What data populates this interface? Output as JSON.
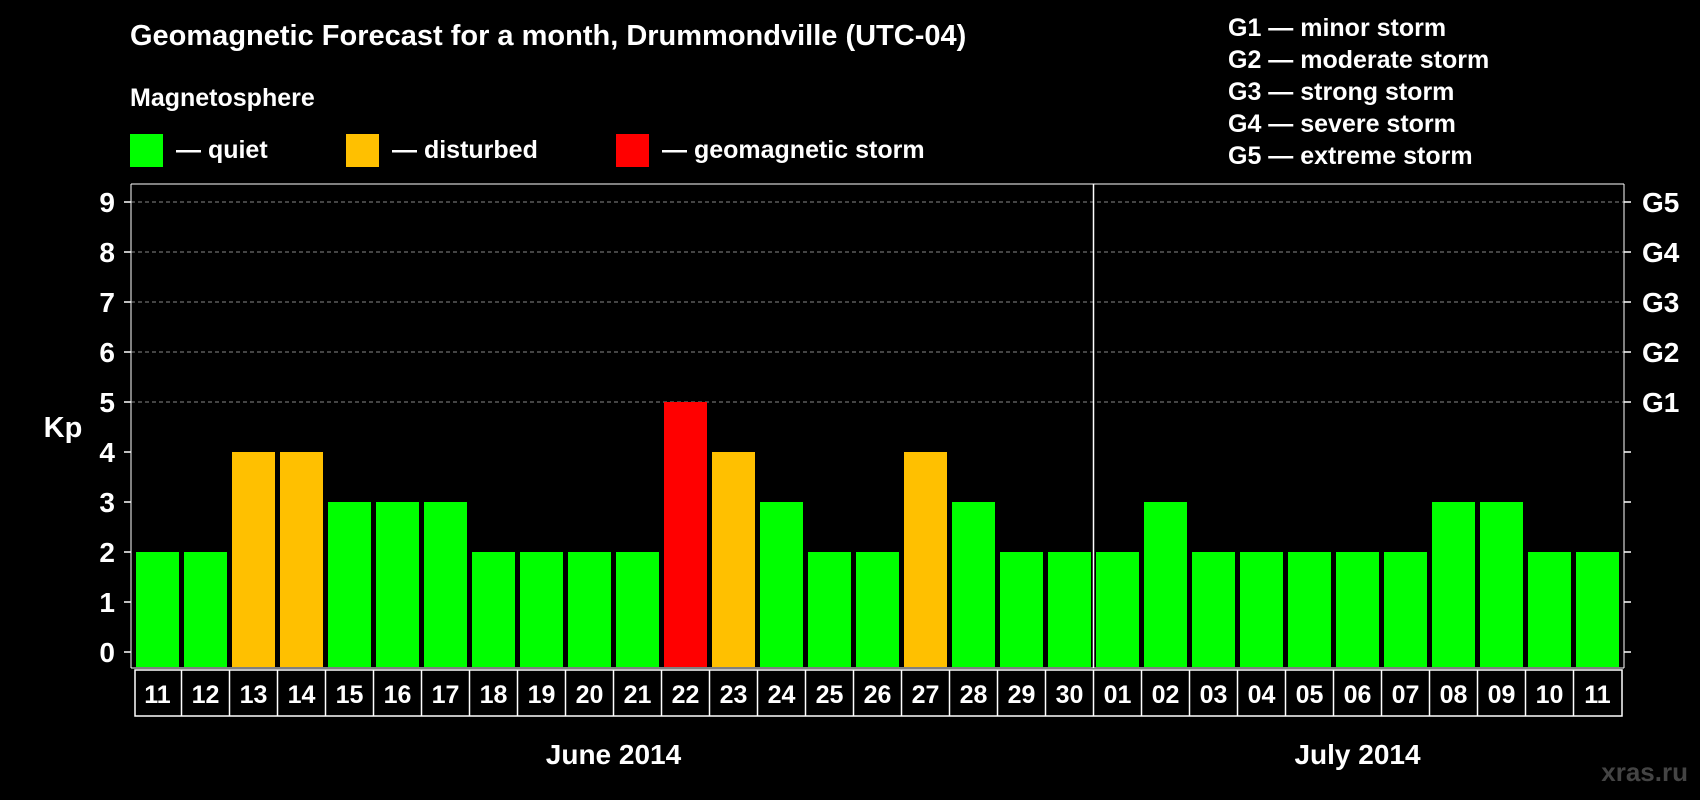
{
  "title": "Geomagnetic Forecast for a month, Drummondville (UTC-04)",
  "subtitle": "Magnetosphere",
  "legend": [
    {
      "label": "— quiet",
      "color": "#00ff00"
    },
    {
      "label": "— disturbed",
      "color": "#ffc000"
    },
    {
      "label": "— geomagnetic storm",
      "color": "#ff0000"
    }
  ],
  "g_scale": [
    "G1 — minor storm",
    "G2 — moderate storm",
    "G3 — strong storm",
    "G4 — severe storm",
    "G5 — extreme storm"
  ],
  "watermark": "xras.ru",
  "chart_data": {
    "type": "bar",
    "title": "Geomagnetic Forecast for a month, Drummondville (UTC-04)",
    "ylabel": "Kp",
    "ylim": [
      0,
      9
    ],
    "yticks": [
      "0",
      "1",
      "2",
      "3",
      "4",
      "5",
      "6",
      "7",
      "8",
      "9"
    ],
    "right_ticks": [
      {
        "kp": 5,
        "label": "G1"
      },
      {
        "kp": 6,
        "label": "G2"
      },
      {
        "kp": 7,
        "label": "G3"
      },
      {
        "kp": 8,
        "label": "G4"
      },
      {
        "kp": 9,
        "label": "G5"
      }
    ],
    "categories": [
      "11",
      "12",
      "13",
      "14",
      "15",
      "16",
      "17",
      "18",
      "19",
      "20",
      "21",
      "22",
      "23",
      "24",
      "25",
      "26",
      "27",
      "28",
      "29",
      "30",
      "01",
      "02",
      "03",
      "04",
      "05",
      "06",
      "07",
      "08",
      "09",
      "10",
      "11"
    ],
    "values": [
      2,
      2,
      4,
      4,
      3,
      3,
      3,
      2,
      2,
      2,
      2,
      5,
      4,
      3,
      2,
      2,
      4,
      3,
      2,
      2,
      2,
      3,
      2,
      2,
      2,
      2,
      2,
      3,
      3,
      2,
      2
    ],
    "months": [
      {
        "label": "June 2014",
        "start_index": 0,
        "end_index": 19
      },
      {
        "label": "July 2014",
        "start_index": 20,
        "end_index": 30
      }
    ],
    "colors": {
      "quiet": "#00ff00",
      "disturbed": "#ffc000",
      "storm": "#ff0000"
    },
    "grid": true
  }
}
